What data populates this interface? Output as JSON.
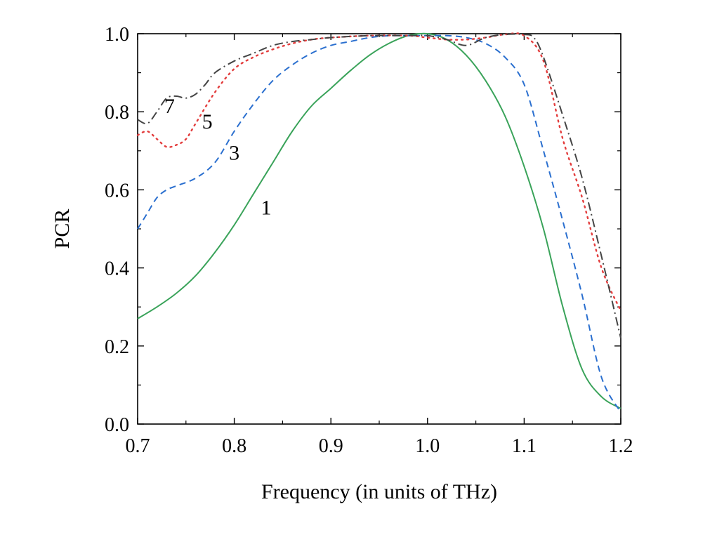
{
  "chart_data": {
    "type": "line",
    "title": "",
    "xlabel": "Frequency (in units of THz)",
    "ylabel": "PCR",
    "xlim": [
      0.7,
      1.2
    ],
    "ylim": [
      0.0,
      1.0
    ],
    "xticks": [
      0.7,
      0.8,
      0.9,
      1.0,
      1.1,
      1.2
    ],
    "xtick_labels": [
      "0.7",
      "0.8",
      "0.9",
      "1.0",
      "1.1",
      "1.2"
    ],
    "yticks": [
      0.0,
      0.2,
      0.4,
      0.6,
      0.8,
      1.0
    ],
    "ytick_labels": [
      "0.0",
      "0.2",
      "0.4",
      "0.6",
      "0.8",
      "1.0"
    ],
    "grid": false,
    "legend": "none",
    "series": [
      {
        "name": "1",
        "color": "#3aa35a",
        "dash": "solid",
        "label_pos": [
          0.833,
          0.555
        ],
        "x": [
          0.7,
          0.72,
          0.74,
          0.76,
          0.78,
          0.8,
          0.82,
          0.84,
          0.86,
          0.88,
          0.9,
          0.92,
          0.94,
          0.96,
          0.98,
          1.0,
          1.02,
          1.04,
          1.06,
          1.08,
          1.1,
          1.12,
          1.14,
          1.16,
          1.18,
          1.2
        ],
        "y": [
          0.27,
          0.3,
          0.335,
          0.38,
          0.44,
          0.51,
          0.59,
          0.67,
          0.75,
          0.815,
          0.86,
          0.905,
          0.945,
          0.975,
          0.995,
          1.0,
          0.985,
          0.945,
          0.88,
          0.79,
          0.66,
          0.5,
          0.3,
          0.14,
          0.07,
          0.04
        ]
      },
      {
        "name": "3",
        "color": "#2a6fcf",
        "dash": "dashed",
        "label_pos": [
          0.8,
          0.695
        ],
        "x": [
          0.7,
          0.71,
          0.72,
          0.73,
          0.74,
          0.76,
          0.78,
          0.8,
          0.82,
          0.84,
          0.86,
          0.88,
          0.9,
          0.92,
          0.94,
          0.96,
          0.98,
          1.0,
          1.02,
          1.04,
          1.06,
          1.08,
          1.1,
          1.12,
          1.14,
          1.16,
          1.18,
          1.2
        ],
        "y": [
          0.5,
          0.54,
          0.58,
          0.6,
          0.61,
          0.63,
          0.67,
          0.75,
          0.82,
          0.88,
          0.92,
          0.95,
          0.97,
          0.98,
          0.99,
          0.995,
          0.995,
          0.995,
          0.995,
          0.99,
          0.975,
          0.94,
          0.87,
          0.7,
          0.52,
          0.33,
          0.12,
          0.03
        ]
      },
      {
        "name": "5",
        "color": "#e33d3d",
        "dash": "dotted",
        "label_pos": [
          0.772,
          0.775
        ],
        "x": [
          0.7,
          0.71,
          0.72,
          0.73,
          0.74,
          0.75,
          0.76,
          0.78,
          0.8,
          0.82,
          0.84,
          0.86,
          0.88,
          0.9,
          0.94,
          0.98,
          1.0,
          1.02,
          1.04,
          1.06,
          1.08,
          1.1,
          1.12,
          1.14,
          1.16,
          1.18,
          1.2
        ],
        "y": [
          0.74,
          0.75,
          0.73,
          0.71,
          0.715,
          0.73,
          0.77,
          0.85,
          0.91,
          0.94,
          0.96,
          0.975,
          0.985,
          0.99,
          0.995,
          0.995,
          0.99,
          0.985,
          0.985,
          0.99,
          0.998,
          0.995,
          0.93,
          0.73,
          0.58,
          0.4,
          0.29
        ]
      },
      {
        "name": "7",
        "color": "#444444",
        "dash": "dashdot",
        "label_pos": [
          0.733,
          0.815
        ],
        "x": [
          0.7,
          0.71,
          0.72,
          0.73,
          0.74,
          0.75,
          0.76,
          0.77,
          0.78,
          0.8,
          0.82,
          0.84,
          0.86,
          0.88,
          0.9,
          0.94,
          0.98,
          1.0,
          1.02,
          1.04,
          1.06,
          1.08,
          1.1,
          1.11,
          1.12,
          1.14,
          1.16,
          1.18,
          1.2
        ],
        "y": [
          0.78,
          0.77,
          0.8,
          0.835,
          0.84,
          0.835,
          0.845,
          0.87,
          0.9,
          0.93,
          0.95,
          0.97,
          0.98,
          0.985,
          0.99,
          0.995,
          0.995,
          0.995,
          0.985,
          0.97,
          0.99,
          0.998,
          0.998,
          0.99,
          0.94,
          0.79,
          0.63,
          0.43,
          0.22
        ]
      }
    ]
  }
}
